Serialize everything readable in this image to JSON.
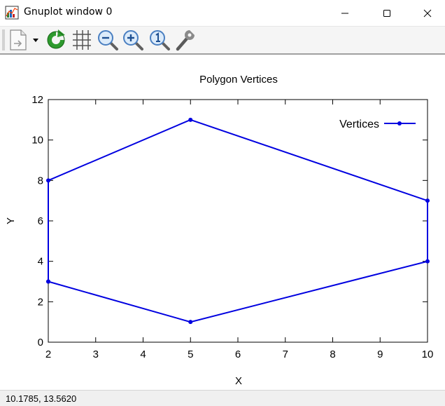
{
  "window": {
    "title": "Gnuplot window 0",
    "icons": {
      "app": "gnuplot-app-icon",
      "minimize": "minimize-icon",
      "maximize": "maximize-icon",
      "close": "close-icon"
    }
  },
  "toolbar": {
    "items": [
      {
        "name": "export-menu-button",
        "icon": "document-export-icon"
      },
      {
        "name": "export-dropdown-button",
        "icon": "dropdown-arrow-icon"
      },
      {
        "name": "replot-button",
        "icon": "refresh-icon"
      },
      {
        "name": "grid-button",
        "icon": "grid-icon"
      },
      {
        "name": "zoom-previous-button",
        "icon": "zoom-out-icon"
      },
      {
        "name": "zoom-next-button",
        "icon": "zoom-in-icon"
      },
      {
        "name": "unzoom-button",
        "icon": "zoom-reset-icon"
      },
      {
        "name": "options-button",
        "icon": "wrench-icon"
      }
    ]
  },
  "chart_data": {
    "type": "line",
    "title": "Polygon Vertices",
    "xlabel": "X",
    "ylabel": "Y",
    "xlim": [
      2,
      10
    ],
    "ylim": [
      0,
      12
    ],
    "xticks": [
      2,
      3,
      4,
      5,
      6,
      7,
      8,
      9,
      10
    ],
    "yticks": [
      0,
      2,
      4,
      6,
      8,
      10,
      12
    ],
    "grid": false,
    "legend_position": "top-right",
    "series": [
      {
        "name": "Vertices",
        "color": "#0000e0",
        "marker": "point",
        "x": [
          2,
          5,
          10,
          10,
          5,
          2,
          2
        ],
        "y": [
          3,
          1,
          4,
          7,
          11,
          8,
          3
        ]
      }
    ]
  },
  "status": {
    "coords": "10.1785,  13.5620"
  }
}
